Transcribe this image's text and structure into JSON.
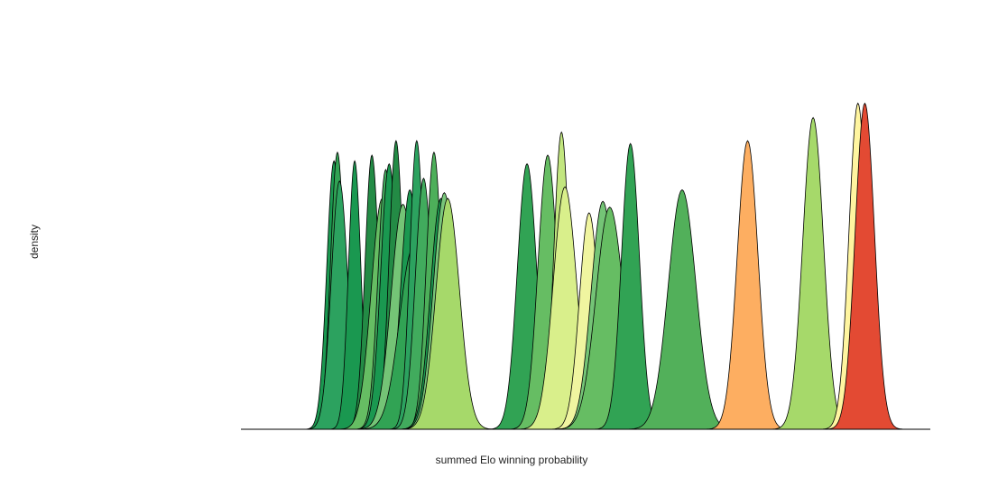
{
  "chart_data": {
    "type": "area",
    "title": "",
    "xlabel": "summed Elo winning probability",
    "ylabel": "density",
    "grid": false,
    "legend": "none",
    "x_axis_ticks": false,
    "y_axis_ticks": false,
    "ylim": [
      0,
      1
    ],
    "outline_color": "#000000",
    "baseline_color": "#000000",
    "series": [
      {
        "mean": 0.135,
        "sd": 0.0105,
        "peak": 0.93,
        "color": "#1A9850"
      },
      {
        "mean": 0.14,
        "sd": 0.01,
        "peak": 0.96,
        "color": "#31A354"
      },
      {
        "mean": 0.143,
        "sd": 0.012,
        "peak": 0.86,
        "color": "#2CA25F"
      },
      {
        "mean": 0.165,
        "sd": 0.009,
        "peak": 0.93,
        "color": "#1A9850"
      },
      {
        "mean": 0.19,
        "sd": 0.01,
        "peak": 0.95,
        "color": "#238B45"
      },
      {
        "mean": 0.205,
        "sd": 0.016,
        "peak": 0.8,
        "color": "#66BD63"
      },
      {
        "mean": 0.21,
        "sd": 0.011,
        "peak": 0.9,
        "color": "#41AB5D"
      },
      {
        "mean": 0.215,
        "sd": 0.012,
        "peak": 0.92,
        "color": "#1A9850"
      },
      {
        "mean": 0.225,
        "sd": 0.01,
        "peak": 1.0,
        "color": "#238B45"
      },
      {
        "mean": 0.235,
        "sd": 0.017,
        "peak": 0.78,
        "color": "#74C476"
      },
      {
        "mean": 0.245,
        "sd": 0.013,
        "peak": 0.83,
        "color": "#1A9850"
      },
      {
        "mean": 0.25,
        "sd": 0.02,
        "peak": 0.63,
        "color": "#31A354"
      },
      {
        "mean": 0.255,
        "sd": 0.01,
        "peak": 1.0,
        "color": "#2CA25F"
      },
      {
        "mean": 0.265,
        "sd": 0.012,
        "peak": 0.87,
        "color": "#41AB5D"
      },
      {
        "mean": 0.28,
        "sd": 0.011,
        "peak": 0.96,
        "color": "#4DAF5A"
      },
      {
        "mean": 0.29,
        "sd": 0.015,
        "peak": 0.8,
        "color": "#1A9850"
      },
      {
        "mean": 0.295,
        "sd": 0.016,
        "peak": 0.82,
        "color": "#78C679"
      },
      {
        "mean": 0.3,
        "sd": 0.017,
        "peak": 0.8,
        "color": "#A6D96A"
      },
      {
        "mean": 0.415,
        "sd": 0.014,
        "peak": 0.92,
        "color": "#31A354"
      },
      {
        "mean": 0.445,
        "sd": 0.014,
        "peak": 0.95,
        "color": "#66BD63"
      },
      {
        "mean": 0.465,
        "sd": 0.011,
        "peak": 1.03,
        "color": "#C2E67F"
      },
      {
        "mean": 0.47,
        "sd": 0.017,
        "peak": 0.84,
        "color": "#D9EF8B"
      },
      {
        "mean": 0.505,
        "sd": 0.014,
        "peak": 0.75,
        "color": "#F0F5A0"
      },
      {
        "mean": 0.525,
        "sd": 0.017,
        "peak": 0.79,
        "color": "#74C476"
      },
      {
        "mean": 0.535,
        "sd": 0.02,
        "peak": 0.77,
        "color": "#66BD63"
      },
      {
        "mean": 0.565,
        "sd": 0.013,
        "peak": 0.99,
        "color": "#31A354"
      },
      {
        "mean": 0.64,
        "sd": 0.02,
        "peak": 0.83,
        "color": "#52B05A"
      },
      {
        "mean": 0.735,
        "sd": 0.015,
        "peak": 1.0,
        "color": "#FDAE61"
      },
      {
        "mean": 0.83,
        "sd": 0.015,
        "peak": 1.08,
        "color": "#A6D96A"
      },
      {
        "mean": 0.895,
        "sd": 0.013,
        "peak": 1.13,
        "color": "#FFF5A0"
      },
      {
        "mean": 0.905,
        "sd": 0.014,
        "peak": 1.13,
        "color": "#E34A33"
      }
    ]
  }
}
